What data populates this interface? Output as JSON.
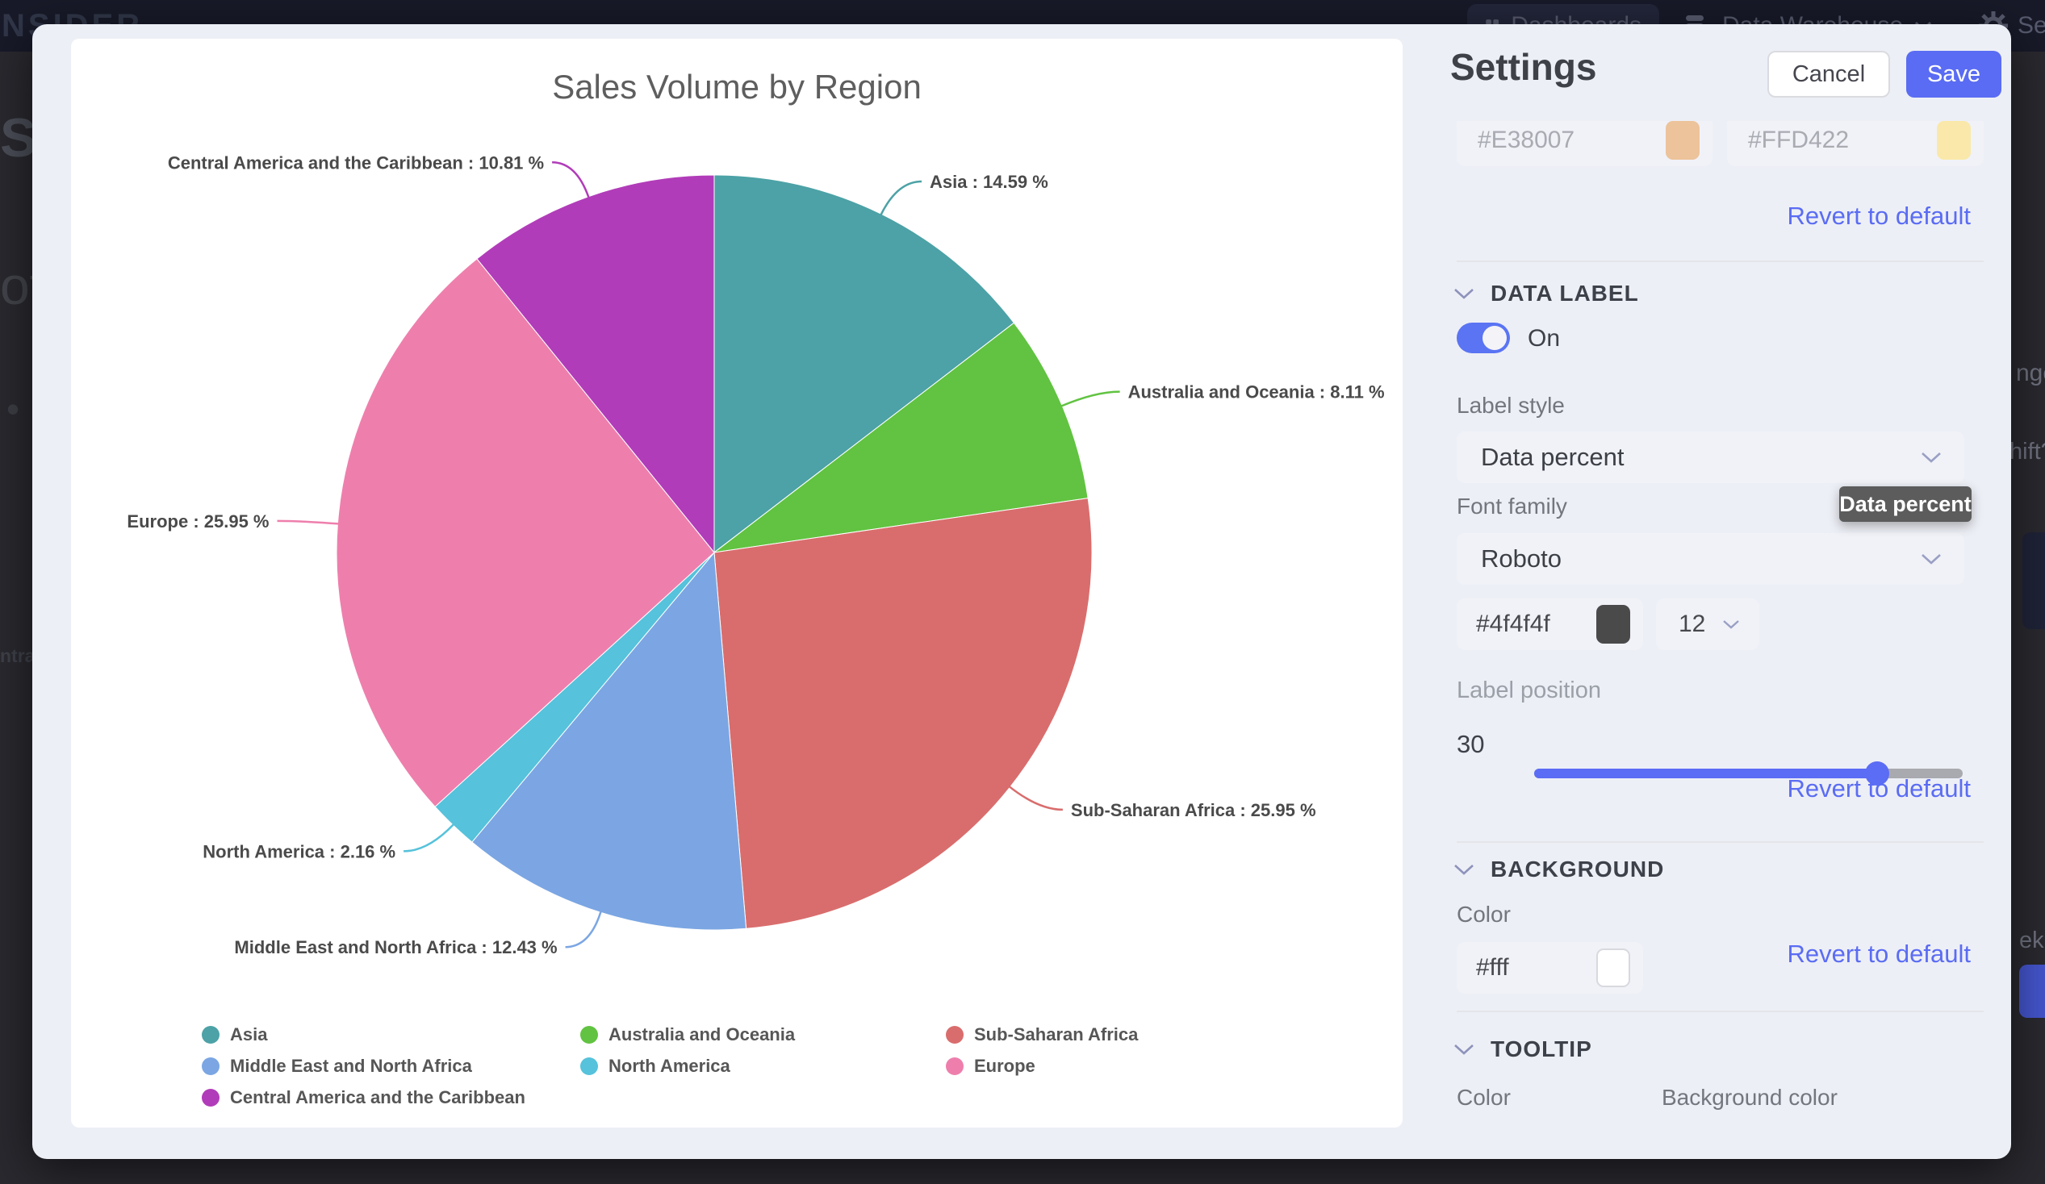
{
  "navbar": {
    "logo": "NSIDER",
    "dashboards_label": "Dashboards",
    "data_warehouse_label": "Data Warehouse",
    "settings_partial_label": "Se"
  },
  "backdrop": {
    "left_fragments": {
      "heading": "Sal",
      "subheading": "ota",
      "bullet": "•",
      "small": "ntral"
    },
    "right_fragments": {
      "f1": "nge",
      "f2": "hift?",
      "f3": "ek"
    }
  },
  "modal": {
    "title": "Settings",
    "cancel_label": "Cancel",
    "save_label": "Save"
  },
  "chart_data": {
    "type": "pie",
    "title": "Sales Volume by Region",
    "label_format": "{name} : {value} %",
    "legend_position": "bottom",
    "start_angle": "top",
    "direction": "clockwise",
    "slices": [
      {
        "name": "Asia",
        "value": 14.59,
        "color": "#4CA2A6"
      },
      {
        "name": "Australia and Oceania",
        "value": 8.11,
        "color": "#61C341"
      },
      {
        "name": "Sub-Saharan Africa",
        "value": 25.95,
        "color": "#D96D6D"
      },
      {
        "name": "Middle East and North Africa",
        "value": 12.43,
        "color": "#7BA6E3"
      },
      {
        "name": "North America",
        "value": 2.16,
        "color": "#56C2DB"
      },
      {
        "name": "Europe",
        "value": 25.95,
        "color": "#EE7FAD"
      },
      {
        "name": "Central America and the Caribbean",
        "value": 10.81,
        "color": "#B13CB9"
      }
    ]
  },
  "settings_panel": {
    "revert_label": "Revert to default",
    "top_color_inputs": [
      {
        "value": "#E38007",
        "swatch": "#ECC39A"
      },
      {
        "value": "#FFD422",
        "swatch": "#F9E8A9"
      }
    ],
    "data_label": {
      "heading": "DATA LABEL",
      "toggle_label": "On",
      "toggle_on": true,
      "label_style_label": "Label style",
      "label_style_value": "Data percent",
      "dropdown_tooltip": "Data percent",
      "font_family_label": "Font family",
      "font_family_value": "Roboto",
      "font_color_value": "#4f4f4f",
      "font_color_swatch": "#4A4A4A",
      "font_size_value": "12",
      "label_position_label": "Label position",
      "label_position_value": "30",
      "slider_percent": 80
    },
    "background": {
      "heading": "BACKGROUND",
      "color_label": "Color",
      "color_value": "#fff",
      "color_swatch": "#FFFFFF"
    },
    "tooltip": {
      "heading": "TOOLTIP",
      "color_label": "Color",
      "background_color_label": "Background color"
    },
    "colors": {
      "accent": "#5A6CF3",
      "tooltip_bg": "#5C5C5C"
    }
  }
}
